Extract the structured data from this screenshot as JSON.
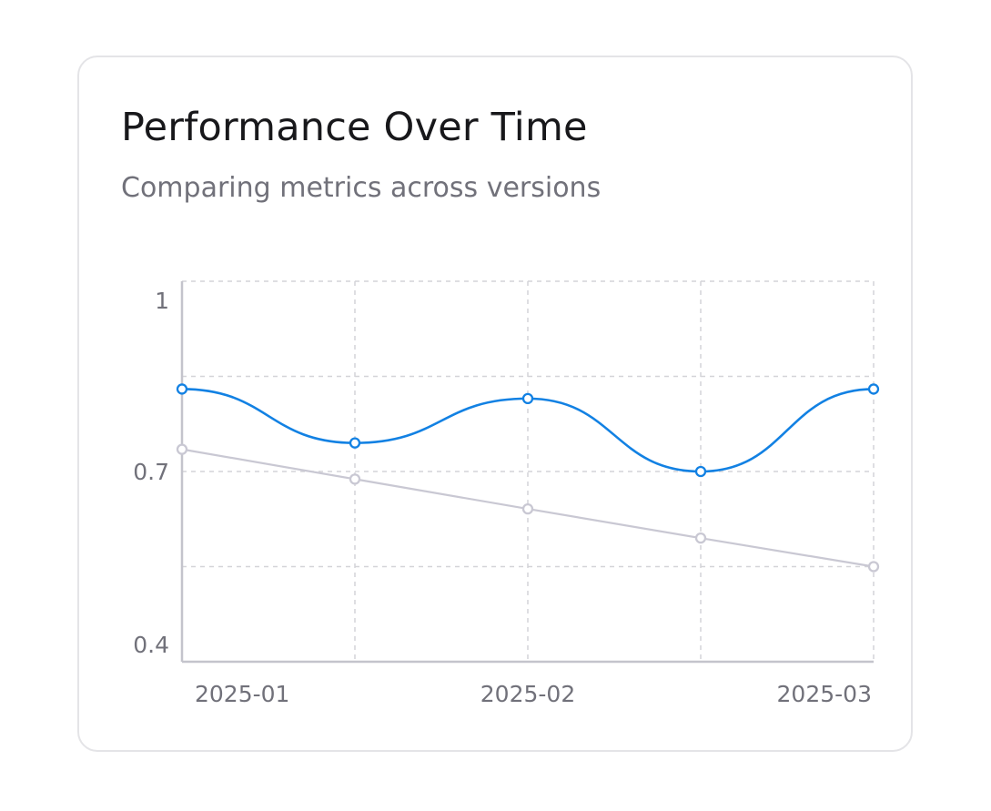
{
  "card": {
    "title": "Performance Over Time",
    "subtitle": "Comparing metrics across versions"
  },
  "colors": {
    "primary_series": "#1281e3",
    "secondary_series": "#c9c8d3",
    "grid": "#d4d4d8",
    "axis": "#c4c4cc",
    "tick_text": "#71717a"
  },
  "chart_data": {
    "type": "line",
    "title": "",
    "xlabel": "",
    "ylabel": "",
    "x": [
      "2025-01-01",
      "2025-01-19",
      "2025-02-06",
      "2025-02-24",
      "2025-03-14"
    ],
    "x_tick_labels": [
      "2025-01",
      "2025-02",
      "2025-03"
    ],
    "y_tick_labels": [
      "1",
      "0.7",
      "0.4"
    ],
    "ylim": [
      0.4,
      1.0
    ],
    "grid": true,
    "legend": "none",
    "series": [
      {
        "values": [
          0.83,
          0.745,
          0.815,
          0.7,
          0.83
        ],
        "style": "smooth",
        "color": "#1281e3"
      },
      {
        "values": [
          0.735,
          0.688,
          0.641,
          0.595,
          0.55
        ],
        "style": "linear",
        "color": "#c9c8d3"
      }
    ]
  }
}
